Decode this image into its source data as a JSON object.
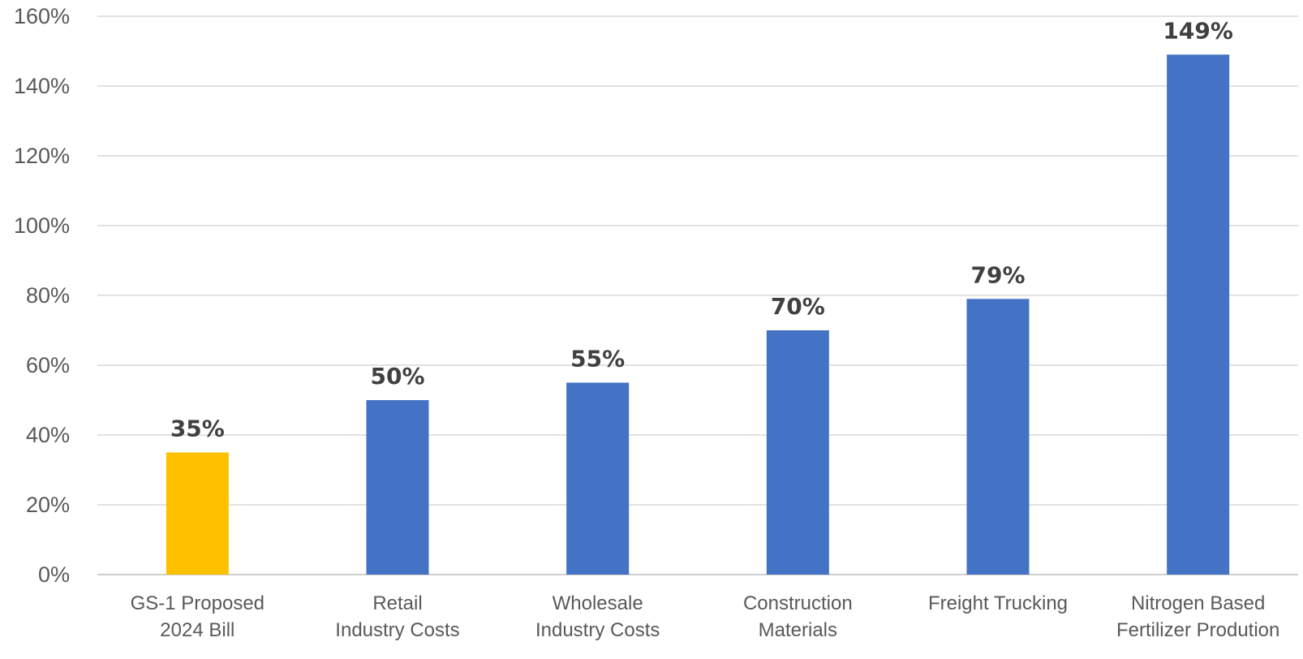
{
  "chart_data": {
    "type": "bar",
    "categories": [
      [
        "GS-1 Proposed",
        "2024 Bill"
      ],
      [
        "Retail",
        "Industry Costs"
      ],
      [
        "Wholesale",
        "Industry Costs"
      ],
      [
        "Construction",
        "Materials"
      ],
      [
        "Freight Trucking"
      ],
      [
        "Nitrogen Based",
        "Fertilizer Prodution"
      ]
    ],
    "values": [
      35,
      50,
      55,
      70,
      79,
      149
    ],
    "data_labels": [
      "35%",
      "50%",
      "55%",
      "70%",
      "79%",
      "149%"
    ],
    "bar_colors": [
      "#FFC000",
      "#4472C4",
      "#4472C4",
      "#4472C4",
      "#4472C4",
      "#4472C4"
    ],
    "yticks": [
      0,
      20,
      40,
      60,
      80,
      100,
      120,
      140,
      160
    ],
    "ytick_labels": [
      "0%",
      "20%",
      "40%",
      "60%",
      "80%",
      "100%",
      "120%",
      "140%",
      "160%"
    ],
    "ylim": [
      0,
      160
    ],
    "grid": true,
    "legend": "none",
    "title": "",
    "xlabel": "",
    "ylabel": ""
  }
}
